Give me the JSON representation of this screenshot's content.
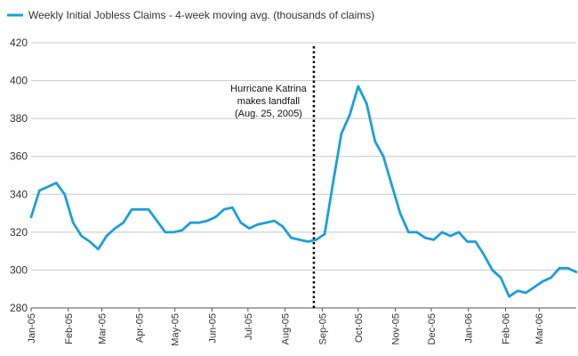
{
  "chart_data": {
    "type": "line",
    "legend": {
      "placement": "top-left",
      "label": "Weekly Initial Jobless Claims - 4-week moving avg. (thousands of claims)"
    },
    "series": [
      {
        "name": "Weekly Initial Jobless Claims - 4-week moving avg. (thousands of claims)",
        "color": "#1aa0dc",
        "x": [
          "2005-01-01",
          "2005-01-08",
          "2005-01-15",
          "2005-01-22",
          "2005-01-29",
          "2005-02-05",
          "2005-02-12",
          "2005-02-19",
          "2005-02-26",
          "2005-03-05",
          "2005-03-12",
          "2005-03-19",
          "2005-03-26",
          "2005-04-02",
          "2005-04-09",
          "2005-04-16",
          "2005-04-23",
          "2005-04-30",
          "2005-05-07",
          "2005-05-14",
          "2005-05-21",
          "2005-05-28",
          "2005-06-04",
          "2005-06-11",
          "2005-06-18",
          "2005-06-25",
          "2005-07-02",
          "2005-07-09",
          "2005-07-16",
          "2005-07-23",
          "2005-07-30",
          "2005-08-06",
          "2005-08-13",
          "2005-08-20",
          "2005-08-27",
          "2005-09-03",
          "2005-09-10",
          "2005-09-17",
          "2005-09-24",
          "2005-10-01",
          "2005-10-08",
          "2005-10-15",
          "2005-10-22",
          "2005-10-29",
          "2005-11-05",
          "2005-11-12",
          "2005-11-19",
          "2005-11-26",
          "2005-12-03",
          "2005-12-10",
          "2005-12-17",
          "2005-12-24",
          "2005-12-31",
          "2006-01-07",
          "2006-01-14",
          "2006-01-21",
          "2006-01-28",
          "2006-02-04",
          "2006-02-11",
          "2006-02-18",
          "2006-02-25",
          "2006-03-04",
          "2006-03-11",
          "2006-03-18",
          "2006-03-25",
          "2006-04-01"
        ],
        "values": [
          328,
          342,
          344,
          346,
          340,
          325,
          318,
          315,
          311,
          318,
          322,
          325,
          332,
          332,
          332,
          326,
          320,
          320,
          321,
          325,
          325,
          326,
          328,
          332,
          333,
          325,
          322,
          324,
          325,
          326,
          323,
          317,
          316,
          315,
          316,
          319,
          346,
          372,
          382,
          397,
          388,
          368,
          360,
          345,
          330,
          320,
          320,
          317,
          316,
          320,
          318,
          320,
          315,
          315,
          308,
          300,
          296,
          286,
          289,
          288,
          291,
          294,
          296,
          301,
          301,
          299
        ]
      }
    ],
    "y_ticks": [
      280,
      300,
      320,
      340,
      360,
      380,
      400,
      420
    ],
    "ylim": [
      280,
      420
    ],
    "x_ticks": [
      {
        "date": "2005-01-01",
        "label": "Jan-05"
      },
      {
        "date": "2005-02-01",
        "label": "Feb-05"
      },
      {
        "date": "2005-03-01",
        "label": "Mar-05"
      },
      {
        "date": "2005-04-01",
        "label": "Apr-05"
      },
      {
        "date": "2005-05-01",
        "label": "May-05"
      },
      {
        "date": "2005-06-01",
        "label": "Jun-05"
      },
      {
        "date": "2005-07-01",
        "label": "Jul-05"
      },
      {
        "date": "2005-08-01",
        "label": "Aug-05"
      },
      {
        "date": "2005-09-01",
        "label": "Sep-05"
      },
      {
        "date": "2005-10-01",
        "label": "Oct-05"
      },
      {
        "date": "2005-11-01",
        "label": "Nov-05"
      },
      {
        "date": "2005-12-01",
        "label": "Dec-05"
      },
      {
        "date": "2006-01-01",
        "label": "Jan-06"
      },
      {
        "date": "2006-02-01",
        "label": "Feb-06"
      },
      {
        "date": "2006-03-01",
        "label": "Mar-06"
      }
    ],
    "xlim": [
      "2005-01-01",
      "2006-04-01"
    ],
    "grid": true,
    "annotation": {
      "date": "2005-08-25",
      "lines": [
        "Hurricane Katrina",
        "makes landfall",
        "(Aug. 25, 2005)"
      ],
      "line_style": "dotted",
      "color": "#000000"
    }
  }
}
